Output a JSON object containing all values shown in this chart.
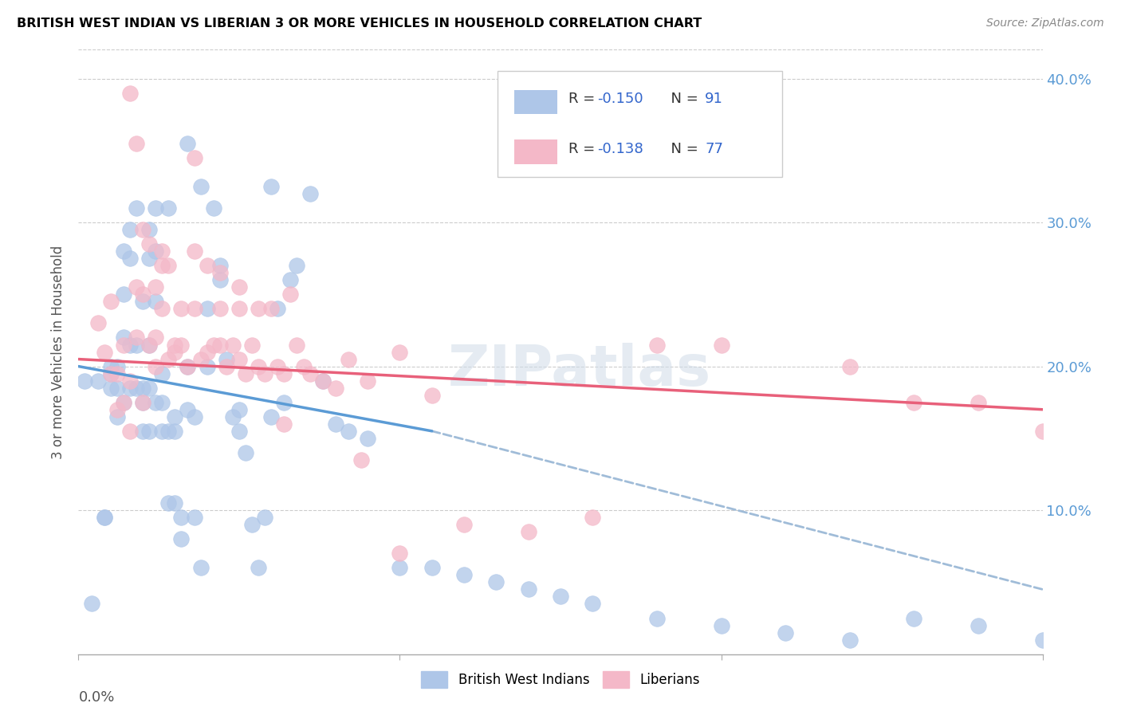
{
  "title": "BRITISH WEST INDIAN VS LIBERIAN 3 OR MORE VEHICLES IN HOUSEHOLD CORRELATION CHART",
  "source": "Source: ZipAtlas.com",
  "ylabel": "3 or more Vehicles in Household",
  "xlim": [
    0.0,
    0.15
  ],
  "ylim": [
    0.0,
    0.42
  ],
  "blue_scatter_x": [
    0.001,
    0.002,
    0.003,
    0.004,
    0.004,
    0.005,
    0.005,
    0.005,
    0.006,
    0.006,
    0.006,
    0.007,
    0.007,
    0.007,
    0.007,
    0.008,
    0.008,
    0.008,
    0.008,
    0.009,
    0.009,
    0.009,
    0.01,
    0.01,
    0.01,
    0.01,
    0.011,
    0.011,
    0.011,
    0.011,
    0.011,
    0.012,
    0.012,
    0.012,
    0.012,
    0.013,
    0.013,
    0.013,
    0.014,
    0.014,
    0.014,
    0.015,
    0.015,
    0.015,
    0.016,
    0.016,
    0.017,
    0.017,
    0.018,
    0.018,
    0.019,
    0.019,
    0.02,
    0.02,
    0.021,
    0.022,
    0.022,
    0.023,
    0.024,
    0.025,
    0.026,
    0.027,
    0.028,
    0.029,
    0.03,
    0.031,
    0.032,
    0.033,
    0.034,
    0.036,
    0.038,
    0.04,
    0.042,
    0.045,
    0.05,
    0.055,
    0.06,
    0.065,
    0.07,
    0.075,
    0.08,
    0.09,
    0.1,
    0.11,
    0.12,
    0.13,
    0.14,
    0.15,
    0.017,
    0.025,
    0.03
  ],
  "blue_scatter_y": [
    0.19,
    0.035,
    0.19,
    0.095,
    0.095,
    0.2,
    0.195,
    0.185,
    0.185,
    0.2,
    0.165,
    0.28,
    0.25,
    0.22,
    0.175,
    0.295,
    0.275,
    0.215,
    0.185,
    0.31,
    0.185,
    0.215,
    0.245,
    0.185,
    0.175,
    0.155,
    0.295,
    0.275,
    0.215,
    0.185,
    0.155,
    0.31,
    0.175,
    0.28,
    0.245,
    0.195,
    0.175,
    0.155,
    0.31,
    0.155,
    0.105,
    0.165,
    0.155,
    0.105,
    0.095,
    0.08,
    0.355,
    0.2,
    0.165,
    0.095,
    0.06,
    0.325,
    0.24,
    0.2,
    0.31,
    0.27,
    0.26,
    0.205,
    0.165,
    0.155,
    0.14,
    0.09,
    0.06,
    0.095,
    0.325,
    0.24,
    0.175,
    0.26,
    0.27,
    0.32,
    0.19,
    0.16,
    0.155,
    0.15,
    0.06,
    0.06,
    0.055,
    0.05,
    0.045,
    0.04,
    0.035,
    0.025,
    0.02,
    0.015,
    0.01,
    0.025,
    0.02,
    0.01,
    0.17,
    0.17,
    0.165
  ],
  "pink_scatter_x": [
    0.003,
    0.004,
    0.005,
    0.005,
    0.006,
    0.006,
    0.007,
    0.007,
    0.008,
    0.008,
    0.008,
    0.009,
    0.009,
    0.01,
    0.01,
    0.01,
    0.011,
    0.011,
    0.012,
    0.012,
    0.012,
    0.013,
    0.013,
    0.014,
    0.014,
    0.015,
    0.015,
    0.016,
    0.016,
    0.017,
    0.018,
    0.018,
    0.019,
    0.02,
    0.02,
    0.021,
    0.022,
    0.022,
    0.023,
    0.024,
    0.025,
    0.025,
    0.026,
    0.027,
    0.028,
    0.029,
    0.03,
    0.031,
    0.032,
    0.033,
    0.034,
    0.035,
    0.036,
    0.04,
    0.042,
    0.045,
    0.05,
    0.055,
    0.06,
    0.07,
    0.08,
    0.09,
    0.1,
    0.12,
    0.13,
    0.14,
    0.15,
    0.009,
    0.013,
    0.018,
    0.022,
    0.025,
    0.028,
    0.032,
    0.038,
    0.044,
    0.05
  ],
  "pink_scatter_y": [
    0.23,
    0.21,
    0.245,
    0.195,
    0.17,
    0.195,
    0.215,
    0.175,
    0.19,
    0.155,
    0.39,
    0.255,
    0.22,
    0.295,
    0.175,
    0.25,
    0.285,
    0.215,
    0.255,
    0.22,
    0.2,
    0.28,
    0.24,
    0.205,
    0.27,
    0.21,
    0.215,
    0.24,
    0.215,
    0.2,
    0.28,
    0.24,
    0.205,
    0.27,
    0.21,
    0.215,
    0.24,
    0.215,
    0.2,
    0.215,
    0.24,
    0.205,
    0.195,
    0.215,
    0.2,
    0.195,
    0.24,
    0.2,
    0.195,
    0.25,
    0.215,
    0.2,
    0.195,
    0.185,
    0.205,
    0.19,
    0.21,
    0.18,
    0.09,
    0.085,
    0.095,
    0.215,
    0.215,
    0.2,
    0.175,
    0.175,
    0.155,
    0.355,
    0.27,
    0.345,
    0.265,
    0.255,
    0.24,
    0.16,
    0.19,
    0.135,
    0.07
  ],
  "blue_line_x": [
    0.0,
    0.055
  ],
  "blue_line_y": [
    0.2,
    0.155
  ],
  "pink_line_x": [
    0.0,
    0.15
  ],
  "pink_line_y": [
    0.205,
    0.17
  ],
  "dashed_line_x": [
    0.055,
    0.15
  ],
  "dashed_line_y": [
    0.155,
    0.045
  ],
  "blue_color": "#5b9bd5",
  "pink_color": "#e8607a",
  "blue_scatter_color": "#aec6e8",
  "pink_scatter_color": "#f4b8c8",
  "dashed_color": "#a0bcd8",
  "watermark": "ZIPatlas",
  "legend_R_color": "#3366cc",
  "bg_color": "white"
}
